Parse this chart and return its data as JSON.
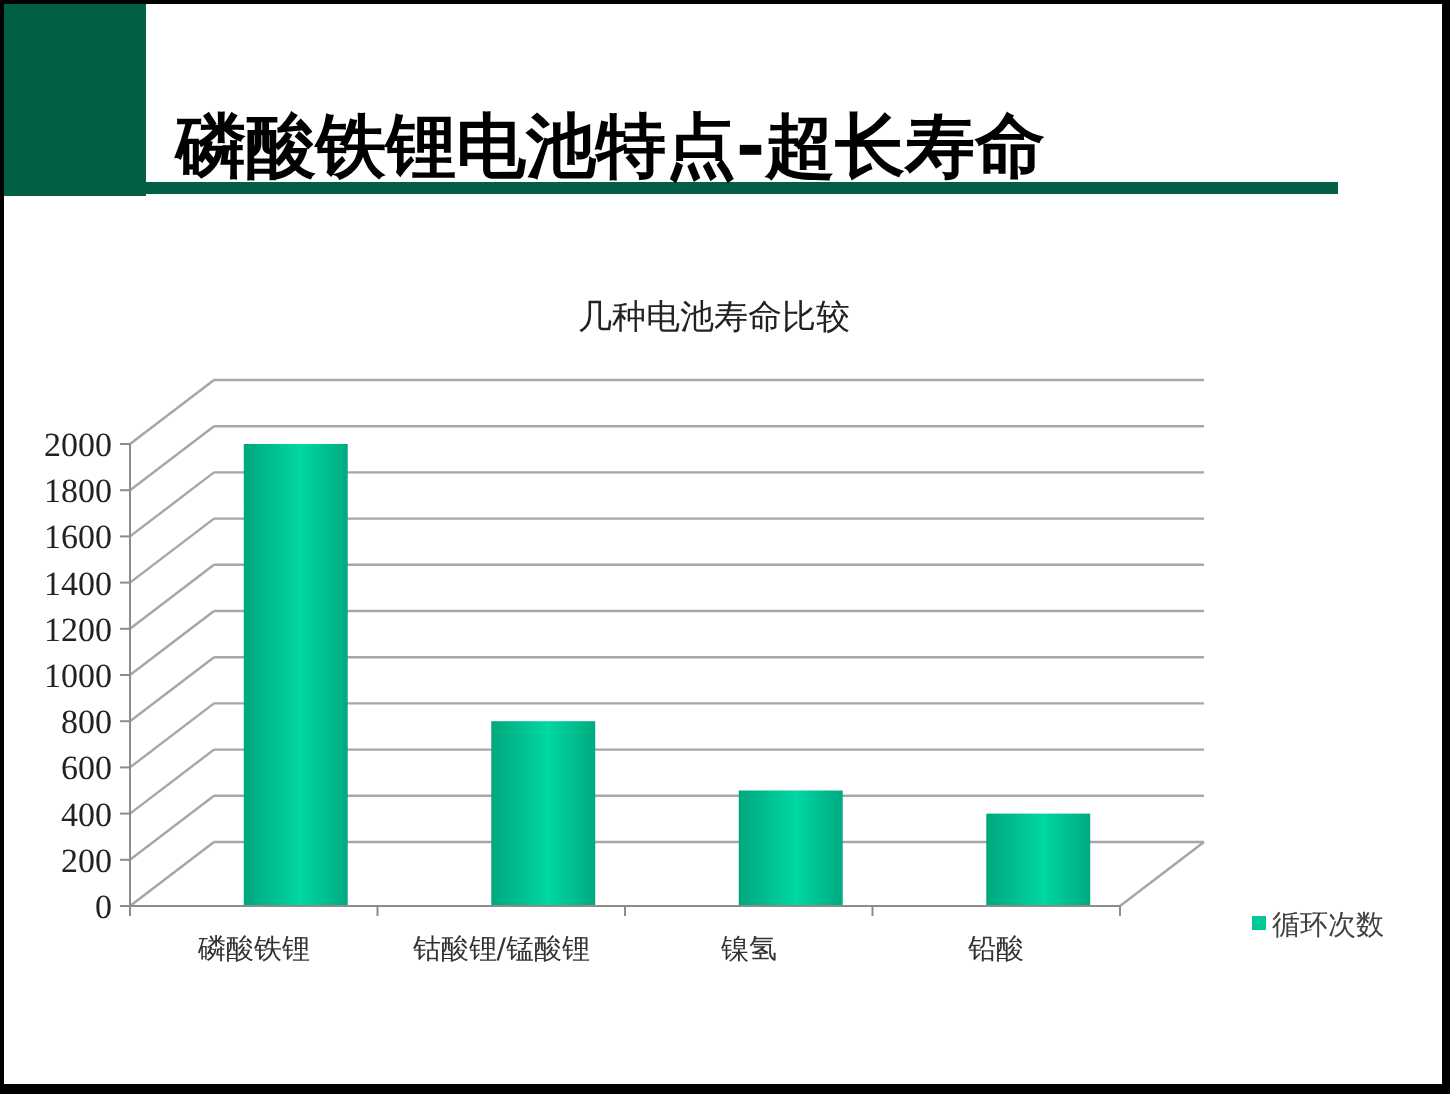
{
  "chart_data": {
    "type": "bar",
    "title": "磷酸铁锂电池特点-超长寿命",
    "subtitle": "几种电池寿命比较",
    "categories": [
      "磷酸铁锂",
      "钴酸锂/锰酸锂",
      "镍氢",
      "铅酸"
    ],
    "series": [
      {
        "name": "循环次数",
        "color": "#00c896",
        "values": [
          2000,
          800,
          500,
          400
        ]
      }
    ],
    "ylim": [
      0,
      2000
    ],
    "yticks": [
      0,
      200,
      400,
      600,
      800,
      1000,
      1200,
      1400,
      1600,
      1800,
      2000
    ],
    "grid": "y",
    "legend": "right"
  }
}
